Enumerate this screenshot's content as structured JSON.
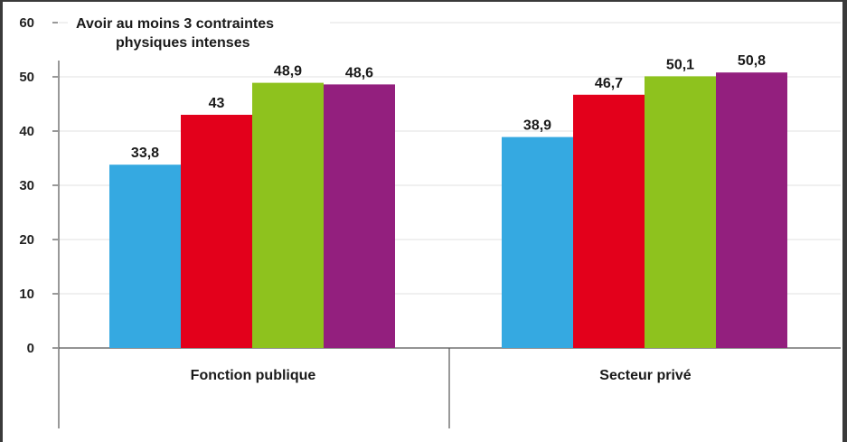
{
  "chart_data": {
    "type": "bar",
    "title_lines": [
      "Avoir au moins 3 contraintes",
      "physiques intenses"
    ],
    "categories": [
      "Fonction publique",
      "Secteur privé"
    ],
    "series": [
      {
        "values": [
          33.8,
          38.9
        ],
        "labels": [
          "33,8",
          "38,9"
        ],
        "color": "#35a9e1"
      },
      {
        "values": [
          43,
          46.7
        ],
        "labels": [
          "43",
          "46,7"
        ],
        "color": "#e3001b"
      },
      {
        "values": [
          48.9,
          50.1
        ],
        "labels": [
          "48,9",
          "50,1"
        ],
        "color": "#8ec21e"
      },
      {
        "values": [
          48.6,
          50.8
        ],
        "labels": [
          "48,6",
          "50,8"
        ],
        "color": "#931f7e"
      }
    ],
    "ylim": [
      0,
      60
    ],
    "yticks": [
      "0",
      "10",
      "20",
      "30",
      "40",
      "50",
      "60"
    ],
    "grid": true,
    "legend": "none"
  },
  "colors": {
    "grid": "#e6e6e6",
    "axis": "#555555",
    "frame_dark": "#3a3a3a"
  }
}
